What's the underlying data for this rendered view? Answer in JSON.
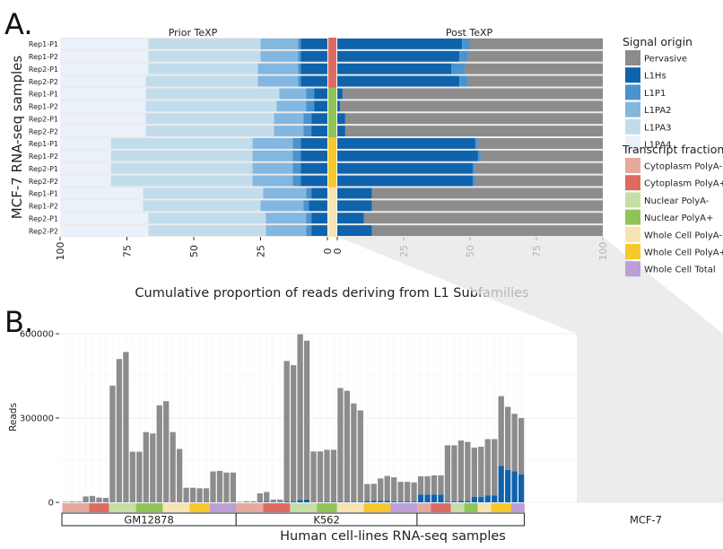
{
  "panel_labels": {
    "a": "A.",
    "b": "B."
  },
  "colors": {
    "Pervasive": "#8c8c8c",
    "L1Hs": "#0f63ad",
    "L1P1": "#4a93cf",
    "L1PA2": "#82b7e0",
    "L1PA3": "#c3dcec",
    "L1PA4": "#eaf1fb",
    "Cytoplasm PolyA-": "#e8a89e",
    "Cytoplasm PolyA+": "#dd6b62",
    "Nuclear PolyA-": "#c6dea4",
    "Nuclear PolyA+": "#8fc556",
    "Whole Cell PolyA-": "#f8e3b2",
    "Whole Cell PolyA+": "#f6c82a",
    "Whole Cell Total": "#bd9ed7"
  },
  "legend": {
    "signal_title": "Signal origin",
    "signal_items": [
      "Pervasive",
      "L1Hs",
      "L1P1",
      "L1PA2",
      "L1PA3",
      "L1PA4"
    ],
    "fraction_title": "Transcript fraction",
    "fraction_items": [
      "Cytoplasm PolyA-",
      "Cytoplasm PolyA+",
      "Nuclear PolyA-",
      "Nuclear PolyA+",
      "Whole Cell PolyA-",
      "Whole Cell PolyA+",
      "Whole Cell Total"
    ]
  },
  "chart_data": [
    {
      "type": "bar",
      "orientation": "horizontal",
      "stacked": true,
      "title_left": "Prior TeXP",
      "title_right": "Post TeXP",
      "ylabel": "MCF-7 RNA-seq samples",
      "xlabel": "Cumulative proportion of reads deriving from L1 Subfamilies",
      "x_ticks_left": [
        "100",
        "75",
        "50",
        "25",
        "0"
      ],
      "x_ticks_right": [
        "0",
        "25",
        "50",
        "75",
        "100"
      ],
      "xlim": [
        0,
        100
      ],
      "categories": [
        "Rep1-P1",
        "Rep1-P2",
        "Rep2-P1",
        "Rep2-P2",
        "Rep1-P1",
        "Rep1-P2",
        "Rep2-P1",
        "Rep2-P2",
        "Rep1-P1",
        "Rep1-P2",
        "Rep2-P1",
        "Rep2-P2",
        "Rep1-P1",
        "Rep1-P2",
        "Rep2-P1",
        "Rep2-P2"
      ],
      "fractions": [
        "Cytoplasm PolyA+",
        "Cytoplasm PolyA+",
        "Cytoplasm PolyA+",
        "Cytoplasm PolyA+",
        "Nuclear PolyA+",
        "Nuclear PolyA+",
        "Nuclear PolyA+",
        "Nuclear PolyA+",
        "Whole Cell PolyA+",
        "Whole Cell PolyA+",
        "Whole Cell PolyA+",
        "Whole Cell PolyA+",
        "Whole Cell PolyA-",
        "Whole Cell PolyA-",
        "Whole Cell PolyA-",
        "Whole Cell PolyA-"
      ],
      "prior_series": [
        {
          "name": "L1Hs",
          "values": [
            10,
            10,
            10,
            10,
            5,
            5,
            6,
            6,
            10,
            10,
            10,
            10,
            6,
            7,
            6,
            6
          ]
        },
        {
          "name": "L1P1",
          "values": [
            1,
            1,
            1,
            1,
            3,
            3,
            3,
            3,
            3,
            3,
            3,
            3,
            2,
            2,
            2,
            2
          ]
        },
        {
          "name": "L1PA2",
          "values": [
            14,
            14,
            15,
            15,
            10,
            11,
            11,
            11,
            15,
            15,
            15,
            15,
            16,
            16,
            15,
            15
          ]
        },
        {
          "name": "L1PA3",
          "values": [
            42,
            42,
            41,
            42,
            50,
            49,
            48,
            48,
            53,
            53,
            53,
            53,
            45,
            44,
            44,
            44
          ]
        },
        {
          "name": "L1PA4",
          "values": [
            33,
            33,
            33,
            32,
            32,
            32,
            32,
            32,
            19,
            19,
            19,
            19,
            31,
            31,
            33,
            33
          ]
        }
      ],
      "post_series": [
        {
          "name": "L1Hs",
          "values": [
            47,
            46,
            43,
            46,
            2,
            1,
            3,
            3,
            52,
            53,
            51,
            51,
            13,
            13,
            10,
            13
          ]
        },
        {
          "name": "L1P1",
          "values": [
            3,
            3,
            5,
            3,
            0,
            0,
            0,
            0,
            1,
            1,
            1,
            1,
            0,
            0,
            0,
            0
          ]
        },
        {
          "name": "Pervasive",
          "values": [
            50,
            51,
            52,
            51,
            98,
            99,
            97,
            97,
            47,
            46,
            48,
            48,
            87,
            87,
            90,
            87
          ]
        }
      ]
    },
    {
      "type": "bar",
      "stacked": true,
      "xlabel": "Human cell-lines RNA-seq samples",
      "ylabel": "Reads",
      "ylim": [
        0,
        630000
      ],
      "y_ticks": [
        0,
        300000,
        600000
      ],
      "y_tick_labels": [
        "0",
        "300000",
        "600000"
      ],
      "groups": [
        {
          "name": "GM12878",
          "fractions": [
            "Cytoplasm PolyA-",
            "Cytoplasm PolyA+",
            "Nuclear PolyA-",
            "Nuclear PolyA+",
            "Whole Cell PolyA-",
            "Whole Cell PolyA+",
            "Whole Cell Total"
          ],
          "pervasive": [
            2000,
            3000,
            3000,
            21000,
            23000,
            17000,
            16000,
            415000,
            510000,
            535000,
            180000,
            180000,
            250000,
            245000,
            345000,
            360000,
            250000,
            190000,
            52000,
            52000,
            50000,
            50000,
            110000,
            112000,
            106000,
            106000
          ],
          "l1hs": [
            0,
            0,
            0,
            0,
            0,
            0,
            0,
            0,
            0,
            0,
            0,
            0,
            0,
            0,
            0,
            0,
            0,
            0,
            0,
            0,
            0,
            0,
            0,
            0,
            0,
            0
          ]
        },
        {
          "name": "K562",
          "fractions": [
            "Cytoplasm PolyA-",
            "Cytoplasm PolyA+",
            "Nuclear PolyA-",
            "Nuclear PolyA+",
            "Whole Cell PolyA-",
            "Whole Cell PolyA+",
            "Whole Cell Total"
          ],
          "pervasive": [
            2000,
            4000,
            4000,
            30000,
            35000,
            10000,
            10000,
            500000,
            485000,
            590000,
            565000,
            180000,
            180000,
            185000,
            185000,
            405000,
            395000,
            350000,
            325000,
            60000,
            60000,
            80000,
            88000,
            85000,
            70000,
            70000,
            68000
          ],
          "l1hs": [
            0,
            0,
            0,
            2000,
            2000,
            0,
            0,
            3000,
            3000,
            8000,
            10000,
            1000,
            1000,
            2000,
            2000,
            2000,
            2000,
            2000,
            2000,
            5000,
            6000,
            5000,
            6000,
            4000,
            3000,
            3000,
            3000
          ]
        },
        {
          "name": "MCF-7",
          "fractions": [
            "Cytoplasm PolyA-",
            "Cytoplasm PolyA+",
            "Nuclear PolyA-",
            "Nuclear PolyA+",
            "Whole Cell PolyA-",
            "Whole Cell PolyA+",
            "Whole Cell Total"
          ],
          "pervasive": [
            65000,
            65000,
            68000,
            68000,
            200000,
            200000,
            215000,
            210000,
            175000,
            178000,
            200000,
            200000,
            248000,
            225000,
            205000,
            200000
          ],
          "l1hs": [
            28000,
            28000,
            28000,
            28000,
            3000,
            3000,
            5000,
            5000,
            20000,
            20000,
            25000,
            25000,
            130000,
            115000,
            110000,
            100000
          ]
        }
      ]
    }
  ]
}
